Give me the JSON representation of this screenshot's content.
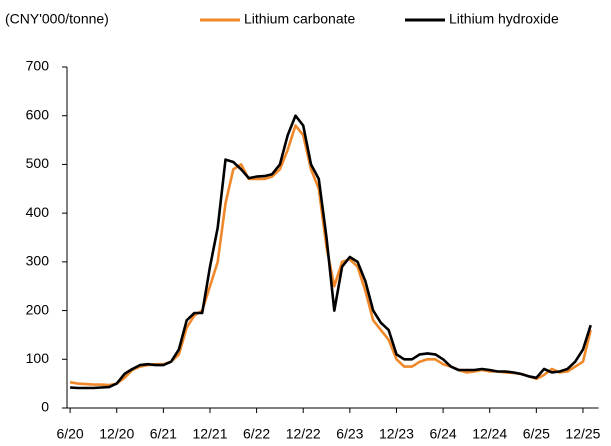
{
  "chart_data": {
    "type": "line",
    "y_axis_label": "(CNY'000/tonne)",
    "x": [
      0,
      1,
      2,
      3,
      4,
      5,
      6,
      7,
      8,
      9,
      10,
      11,
      12,
      13,
      14,
      15,
      16,
      17,
      18,
      19,
      20,
      21,
      22,
      23,
      24,
      25,
      26,
      27,
      28,
      29,
      30,
      31,
      32,
      33,
      34,
      35,
      36,
      37,
      38,
      39,
      40,
      41,
      42,
      43,
      44,
      45,
      46,
      47,
      48,
      49,
      50,
      51,
      52,
      53,
      54,
      55,
      56,
      57,
      58,
      59,
      60,
      61,
      62,
      63,
      64,
      65,
      66,
      67
    ],
    "series": [
      {
        "name": "Lithium carbonate",
        "color": "#f0882a",
        "values": [
          53,
          50,
          49,
          48,
          48,
          47,
          50,
          62,
          78,
          85,
          88,
          90,
          90,
          95,
          110,
          165,
          190,
          200,
          250,
          300,
          420,
          490,
          500,
          470,
          470,
          470,
          475,
          490,
          530,
          580,
          560,
          490,
          450,
          330,
          250,
          300,
          305,
          290,
          240,
          180,
          160,
          140,
          100,
          85,
          85,
          95,
          100,
          100,
          90,
          85,
          78,
          73,
          75,
          78,
          75,
          75,
          73,
          72,
          70,
          65,
          60,
          68,
          80,
          73,
          75,
          85,
          95,
          160
        ]
      },
      {
        "name": "Lithium hydroxide",
        "color": "#000000",
        "values": [
          42,
          41,
          41,
          41,
          42,
          43,
          50,
          70,
          80,
          88,
          90,
          88,
          88,
          95,
          120,
          180,
          195,
          195,
          290,
          370,
          510,
          505,
          490,
          472,
          475,
          476,
          480,
          500,
          560,
          600,
          580,
          500,
          470,
          350,
          200,
          290,
          310,
          300,
          260,
          200,
          175,
          160,
          110,
          100,
          100,
          110,
          112,
          110,
          100,
          85,
          78,
          78,
          78,
          80,
          78,
          75,
          75,
          73,
          70,
          65,
          62,
          80,
          73,
          75,
          80,
          95,
          120,
          170
        ]
      }
    ],
    "xlim": [
      -0.4,
      68
    ],
    "xticks": [
      {
        "value": 0,
        "label": "6/20"
      },
      {
        "value": 6,
        "label": "12/20"
      },
      {
        "value": 12,
        "label": "6/21"
      },
      {
        "value": 18,
        "label": "12/21"
      },
      {
        "value": 24,
        "label": "6/22"
      },
      {
        "value": 30,
        "label": "12/22"
      },
      {
        "value": 36,
        "label": "6/23"
      },
      {
        "value": 42,
        "label": "12/23"
      },
      {
        "value": 48,
        "label": "6/24"
      },
      {
        "value": 54,
        "label": "12/24"
      },
      {
        "value": 60,
        "label": "6/25"
      },
      {
        "value": 66,
        "label": "12/25"
      }
    ],
    "ylim": [
      0,
      700
    ],
    "yticks": [
      0,
      100,
      200,
      300,
      400,
      500,
      600,
      700
    ],
    "legend": "top"
  }
}
